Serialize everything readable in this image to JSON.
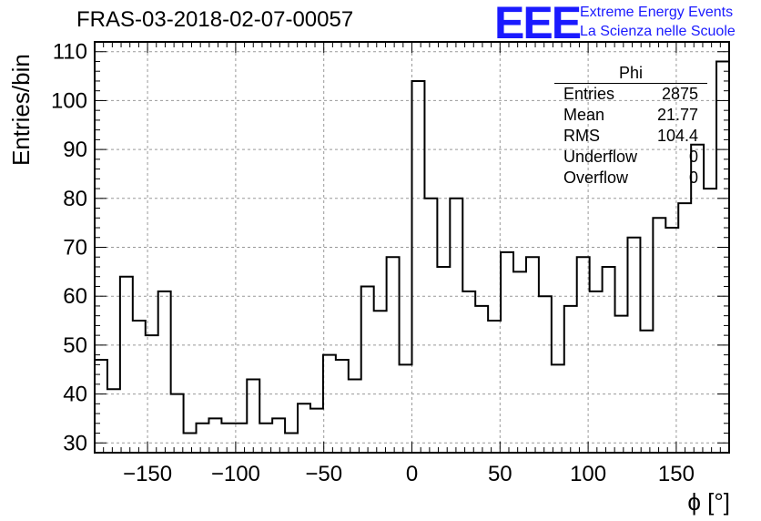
{
  "header": {
    "title": "FRAS-03-2018-02-07-00057",
    "logo_mark": "EEE",
    "logo_line1": "Extreme Energy Events",
    "logo_line2": "La Scienza nelle Scuole",
    "logo_color": "#1a1aff"
  },
  "stats_box": {
    "title": "Phi",
    "rows": [
      {
        "key": "Entries",
        "value": "2875"
      },
      {
        "key": "Mean",
        "value": "21.77"
      },
      {
        "key": "RMS",
        "value": "104.4"
      },
      {
        "key": "Underflow",
        "value": "0"
      },
      {
        "key": "Overflow",
        "value": "0"
      }
    ]
  },
  "chart_data": {
    "type": "histogram",
    "xlabel": "ϕ [°]",
    "ylabel": "Entries/bin",
    "xlim": [
      -180,
      180
    ],
    "ylim": [
      28,
      112
    ],
    "bin_width": 7.2,
    "x_ticks": [
      -150,
      -100,
      -50,
      0,
      50,
      100,
      150
    ],
    "y_ticks": [
      30,
      40,
      50,
      60,
      70,
      80,
      90,
      100,
      110
    ],
    "grid": true,
    "line_color": "#000000",
    "values": [
      47,
      41,
      64,
      55,
      52,
      61,
      40,
      32,
      34,
      35,
      34,
      34,
      43,
      34,
      35,
      32,
      38,
      37,
      48,
      47,
      43,
      62,
      57,
      68,
      46,
      104,
      80,
      66,
      80,
      61,
      58,
      55,
      69,
      65,
      68,
      60,
      46,
      58,
      68,
      61,
      66,
      56,
      72,
      53,
      76,
      74,
      79,
      91,
      82,
      108
    ]
  }
}
